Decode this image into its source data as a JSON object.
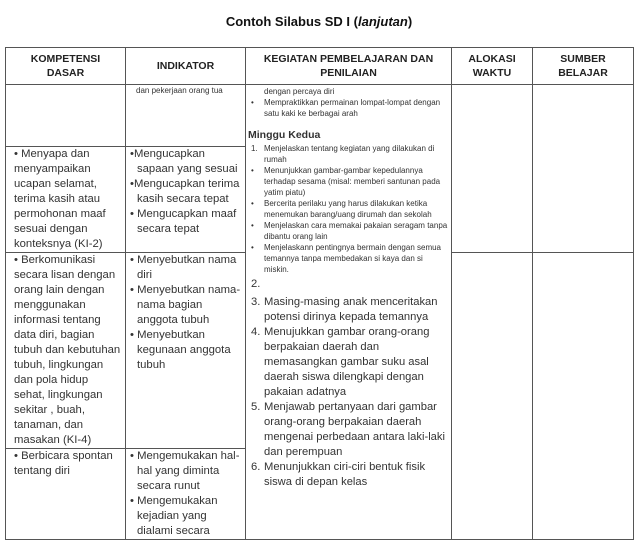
{
  "title": {
    "prefix": "Contoh Silabus SD I (",
    "italic": "lanjutan",
    "suffix": ")"
  },
  "headers": [
    "KOMPETENSI DASAR",
    "INDIKATOR",
    "KEGIATAN PEMBELAJARAN DAN PENILAIAN",
    "ALOKASI WAKTU",
    "SUMBER BELAJAR"
  ],
  "rows": [
    {
      "kd": "",
      "indikator": [
        "dan pekerjaan  orang tua"
      ]
    },
    {
      "kd": "•          Menyapa dan menyampaikan ucapan selamat, terima kasih atau permohonan maaf sesuai dengan konteksnya  (KI-2)",
      "indikator": [
        "•Mengucapkan sapaan yang sesuai",
        "•Mengucapkan terima kasih secara tepat",
        "• Mengucapkan maaf secara tepat"
      ]
    },
    {
      "kd": "•          Berkomunikasi secara lisan dengan orang lain dengan menggunakan informasi tentang data diri, bagian tubuh  dan kebutuhan tubuh, lingkungan dan pola hidup sehat, lingkungan sekitar , buah, tanaman, dan masakan (KI-4)",
      "indikator": [
        "• Menyebutkan nama diri",
        "• Menyebutkan nama-nama bagian anggota tubuh",
        "• Menyebutkan kegunaan anggota tubuh"
      ]
    },
    {
      "kd": "•          Berbicara spontan tentang diri",
      "indikator": [
        "• Mengemukakan hal-hal yang diminta secara runut",
        "• Mengemukakan kejadian yang dialami secara"
      ]
    }
  ],
  "kegiatan": {
    "cont": "dengan percaya diri",
    "bullet0": "Mempraktikkan  permainan lompat-lompat dengan satu kaki ke berbagai arah",
    "week": "Minggu Kedua",
    "item1": "Menjelaskan tentang kegiatan yang dilakukan di rumah",
    "bullets": [
      "Menunjukkan gambar-gambar kepedulannya terhadap sesama (misal: memberi santunan pada yatim piatu)",
      "Bercerita  perilaku yang harus dilakukan ketika menemukan barang/uang dirumah dan sekolah",
      "Menjelaskan cara memakai pakaian seragam tanpa dibantu orang lain",
      "Menjelaskann pentingnya  bermain dengan semua temannya tanpa membedakan si kaya dan si miskin."
    ],
    "numbered": [
      {
        "n": "1.",
        "text": ""
      },
      {
        "n": "2.",
        "text": ""
      },
      {
        "n": "3.",
        "text": "Masing-masing anak menceritakan potensi dirinya kepada temannya"
      },
      {
        "n": "4.",
        "text": "Menujukkan gambar orang-orang berpakaian daerah dan memasangkan gambar suku asal daerah siswa dilengkapi dengan pakaian adatnya"
      },
      {
        "n": "5.",
        "text": "Menjawab pertanyaan dari gambar orang-orang berpakaian daerah mengenai perbedaan antara laki-laki dan perempuan"
      },
      {
        "n": "6.",
        "text": "Menunjukkan ciri-ciri bentuk fisik siswa di depan kelas"
      }
    ]
  }
}
